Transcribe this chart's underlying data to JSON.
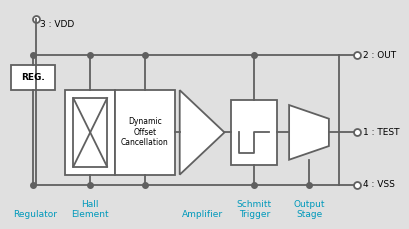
{
  "background_color": "#e0e0e0",
  "line_color": "#606060",
  "text_color": "#000000",
  "label_color": "#0099bb",
  "lw": 1.3,
  "figsize": [
    4.1,
    2.29
  ],
  "dpi": 100,
  "labels": {
    "vdd": "3 : VDD",
    "reg": "REG.",
    "out": "2 : OUT",
    "test": "1 : TEST",
    "vss": "4 : VSS",
    "regulator": "Regulator",
    "hall": "Hall\nElement",
    "amplifier": "Amplifier",
    "schmitt": "Schmitt\nTrigger",
    "output": "Output\nStage",
    "doc": "Dynamic\nOffset\nCancellation"
  }
}
